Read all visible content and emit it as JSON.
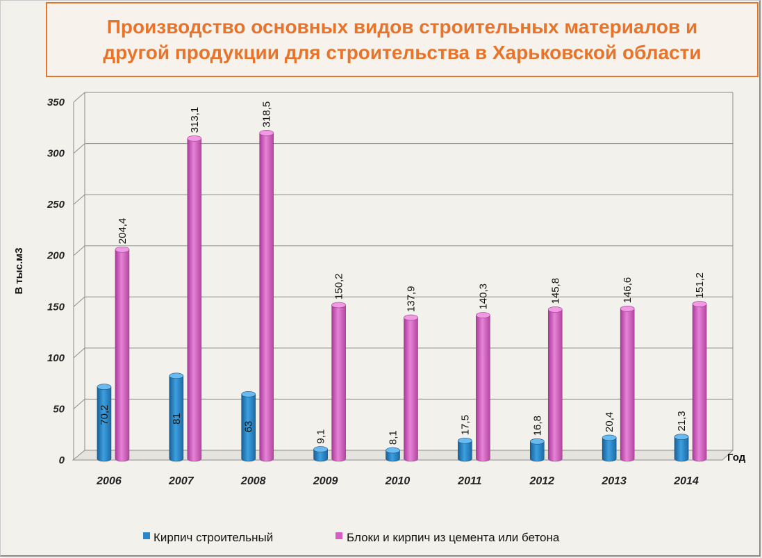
{
  "title": "Производство основных видов строительных материалов и\nдругой продукции для строительства в Харьковской области",
  "colors": {
    "series1": "#2a86c8",
    "series2": "#d45fc4",
    "title": "#e8732a"
  },
  "chart_data": {
    "type": "bar",
    "title": "Производство основных видов строительных материалов и другой продукции для строительства в Харьковской области",
    "xlabel": "Год",
    "ylabel": "В тыс.м3",
    "ylim": [
      0,
      350
    ],
    "yticks": [
      0,
      50,
      100,
      150,
      200,
      250,
      300,
      350
    ],
    "grid": true,
    "legend": "bottom",
    "categories": [
      "2006",
      "2007",
      "2008",
      "2009",
      "2010",
      "2011",
      "2012",
      "2013",
      "2014"
    ],
    "series": [
      {
        "name": "Кирпич строительный",
        "values": [
          70.2,
          81,
          63,
          9.1,
          8.1,
          17.5,
          16.8,
          20.4,
          21.3
        ],
        "labels": [
          "70,2",
          "81",
          "63",
          "9,1",
          "8,1",
          "17,5",
          "16,8",
          "20,4",
          "21,3"
        ]
      },
      {
        "name": "Блоки и кирпич из цемента или бетона",
        "values": [
          204.4,
          313.1,
          318.5,
          150.2,
          137.9,
          140.3,
          145.8,
          146.6,
          151.2
        ],
        "labels": [
          "204,4",
          "313,1",
          "318,5",
          "150,2",
          "137,9",
          "140,3",
          "145,8",
          "146,6",
          "151,2"
        ]
      }
    ]
  }
}
